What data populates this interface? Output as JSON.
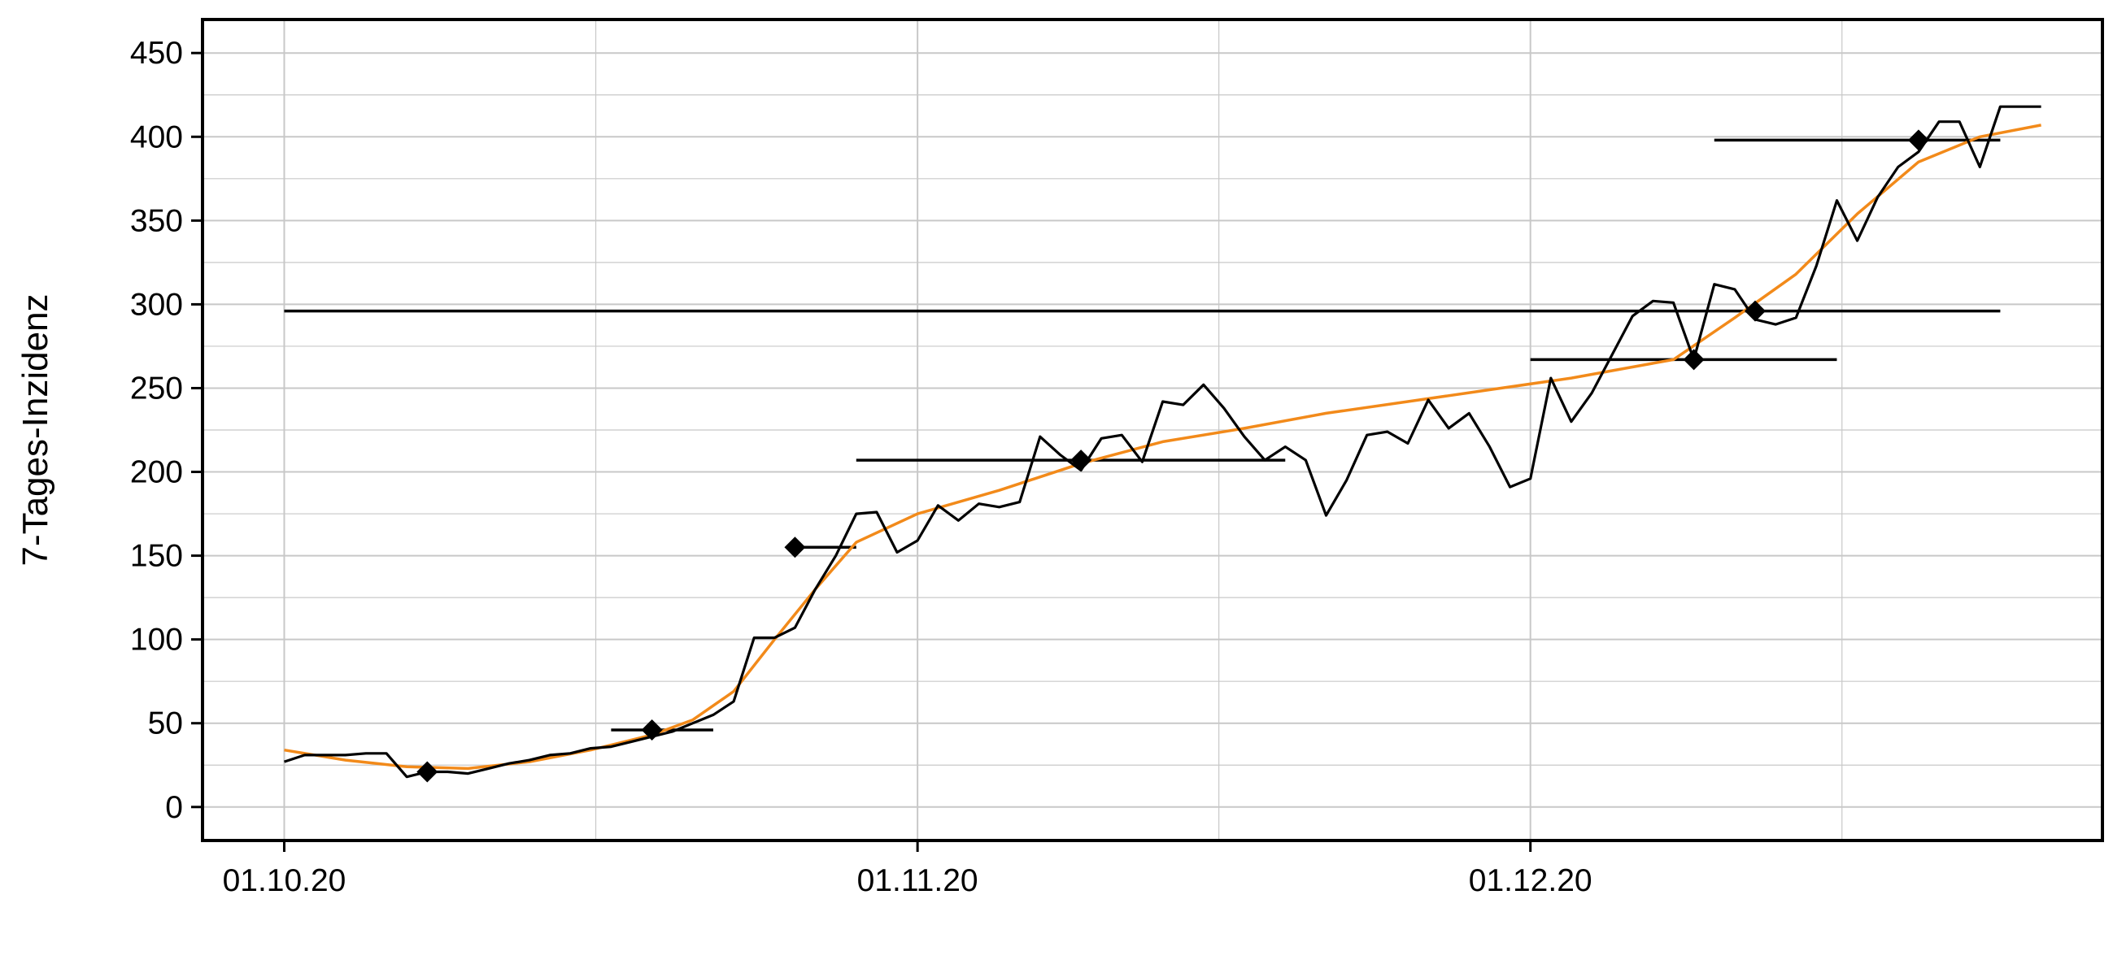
{
  "chart_data": {
    "type": "line",
    "title": "",
    "xlabel": "",
    "ylabel": "7-Tages-Inzidenz",
    "x_tick_labels": [
      "01.10.20",
      "01.11.20",
      "01.12.20"
    ],
    "x_ticks": [
      "2020-10-01",
      "2020-11-01",
      "2020-12-01"
    ],
    "xlim": [
      "2020-09-27",
      "2020-12-29"
    ],
    "ylim": [
      -20,
      470
    ],
    "y_ticks": [
      0,
      50,
      100,
      150,
      200,
      250,
      300,
      350,
      400,
      450
    ],
    "grid": true,
    "colors": {
      "observed": "#000000",
      "fitted": "#f28a1a",
      "frame": "#000000",
      "grid": "#c8c8c8"
    },
    "series": [
      {
        "style": "observed",
        "x": [
          "2020-10-01",
          "2020-10-02",
          "2020-10-03",
          "2020-10-04",
          "2020-10-05",
          "2020-10-06",
          "2020-10-07",
          "2020-10-08",
          "2020-10-09",
          "2020-10-10",
          "2020-10-11",
          "2020-10-12",
          "2020-10-13",
          "2020-10-14",
          "2020-10-15",
          "2020-10-16",
          "2020-10-17",
          "2020-10-18",
          "2020-10-19",
          "2020-10-20",
          "2020-10-21",
          "2020-10-22",
          "2020-10-23",
          "2020-10-24",
          "2020-10-25",
          "2020-10-26",
          "2020-10-27",
          "2020-10-28",
          "2020-10-29",
          "2020-10-30",
          "2020-10-31",
          "2020-11-01",
          "2020-11-02",
          "2020-11-03",
          "2020-11-04",
          "2020-11-05",
          "2020-11-06",
          "2020-11-07",
          "2020-11-08",
          "2020-11-09",
          "2020-11-10",
          "2020-11-11",
          "2020-11-12",
          "2020-11-13",
          "2020-11-14",
          "2020-11-15",
          "2020-11-16",
          "2020-11-17",
          "2020-11-18",
          "2020-11-19",
          "2020-11-20",
          "2020-11-21",
          "2020-11-22",
          "2020-11-23",
          "2020-11-24",
          "2020-11-25",
          "2020-11-26",
          "2020-11-27",
          "2020-11-28",
          "2020-11-29",
          "2020-11-30",
          "2020-12-01",
          "2020-12-02",
          "2020-12-03",
          "2020-12-04",
          "2020-12-05",
          "2020-12-06",
          "2020-12-07",
          "2020-12-08",
          "2020-12-09",
          "2020-12-10",
          "2020-12-11",
          "2020-12-12",
          "2020-12-13",
          "2020-12-14",
          "2020-12-15",
          "2020-12-16",
          "2020-12-17",
          "2020-12-18",
          "2020-12-19",
          "2020-12-20",
          "2020-12-21",
          "2020-12-22",
          "2020-12-23",
          "2020-12-24",
          "2020-12-25",
          "2020-12-26"
        ],
        "y": [
          27,
          31,
          31,
          31,
          32,
          32,
          18,
          21,
          21,
          20,
          23,
          26,
          28,
          31,
          32,
          35,
          36,
          39,
          42,
          45,
          50,
          55,
          63,
          101,
          101,
          107,
          130,
          150,
          175,
          176,
          152,
          159,
          180,
          171,
          181,
          179,
          182,
          221,
          210,
          201,
          220,
          222,
          206,
          242,
          240,
          252,
          238,
          221,
          207,
          215,
          207,
          174,
          195,
          222,
          224,
          217,
          243,
          226,
          235,
          215,
          191,
          196,
          256,
          230,
          247,
          270,
          293,
          302,
          301,
          267,
          312,
          309,
          291,
          288,
          292,
          323,
          362,
          338,
          364,
          382,
          391,
          409,
          409,
          382,
          418,
          418,
          418
        ]
      },
      {
        "style": "fitted",
        "x": [
          "2020-10-01",
          "2020-10-04",
          "2020-10-07",
          "2020-10-10",
          "2020-10-13",
          "2020-10-16",
          "2020-10-19",
          "2020-10-21",
          "2020-10-23",
          "2020-10-25",
          "2020-10-27",
          "2020-10-29",
          "2020-11-01",
          "2020-11-05",
          "2020-11-09",
          "2020-11-13",
          "2020-11-17",
          "2020-11-21",
          "2020-11-25",
          "2020-11-29",
          "2020-12-03",
          "2020-12-08",
          "2020-12-11",
          "2020-12-14",
          "2020-12-17",
          "2020-12-20",
          "2020-12-23",
          "2020-12-26"
        ],
        "y": [
          34,
          28,
          24,
          23,
          27,
          34,
          43,
          52,
          69,
          100,
          130,
          158,
          175,
          189,
          205,
          218,
          226,
          235,
          242,
          249,
          256,
          267,
          292,
          318,
          354,
          385,
          400,
          407
        ]
      }
    ],
    "markers": [
      {
        "x": "2020-10-08",
        "y": 21,
        "interval": [
          "2020-10-08",
          "2020-10-08"
        ]
      },
      {
        "x": "2020-10-19",
        "y": 46,
        "interval": [
          "2020-10-17",
          "2020-10-22"
        ]
      },
      {
        "x": "2020-10-26",
        "y": 155,
        "interval": [
          "2020-10-26",
          "2020-10-29"
        ]
      },
      {
        "x": "2020-11-09",
        "y": 207,
        "interval": [
          "2020-10-29",
          "2020-11-19"
        ]
      },
      {
        "x": "2020-12-09",
        "y": 267,
        "interval": [
          "2020-12-01",
          "2020-12-16"
        ]
      },
      {
        "x": "2020-12-12",
        "y": 296,
        "interval": [
          "2020-10-01",
          "2020-12-24"
        ]
      },
      {
        "x": "2020-12-20",
        "y": 398,
        "interval": [
          "2020-12-10",
          "2020-12-24"
        ]
      }
    ]
  }
}
